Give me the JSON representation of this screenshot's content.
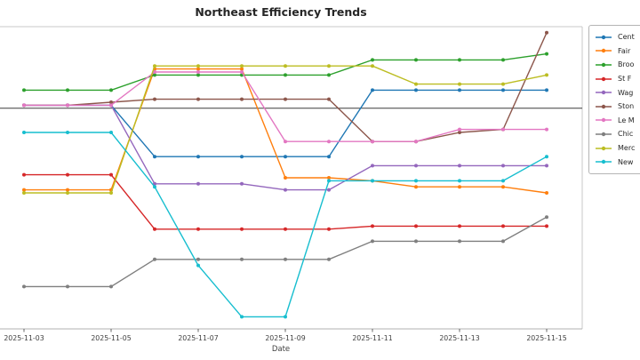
{
  "chart_data": {
    "type": "line",
    "title": "Northeast Efficiency Trends",
    "xlabel": "Date",
    "ylabel": "",
    "x": [
      "2025-11-03",
      "2025-11-04",
      "2025-11-05",
      "2025-11-06",
      "2025-11-07",
      "2025-11-08",
      "2025-11-09",
      "2025-11-10",
      "2025-11-11",
      "2025-11-12",
      "2025-11-13",
      "2025-11-14",
      "2025-11-15"
    ],
    "x_ticks": [
      "2025-11-03",
      "2025-11-05",
      "2025-11-07",
      "2025-11-09",
      "2025-11-11",
      "2025-11-13",
      "2025-11-15"
    ],
    "ylim": [
      0,
      100
    ],
    "grid": false,
    "legend_position": "upper-right-outside-clipped",
    "reference_line_y": 73,
    "series": [
      {
        "name": "Cent",
        "color": "#1f77b4",
        "values": [
          74,
          74,
          74,
          57,
          57,
          57,
          57,
          57,
          79,
          79,
          79,
          79,
          79
        ]
      },
      {
        "name": "Fair",
        "color": "#ff7f0e",
        "values": [
          46,
          46,
          46,
          86,
          86,
          86,
          50,
          50,
          49,
          47,
          47,
          47,
          45
        ]
      },
      {
        "name": "Broo",
        "color": "#2ca02c",
        "values": [
          79,
          79,
          79,
          84,
          84,
          84,
          84,
          84,
          89,
          89,
          89,
          89,
          91
        ]
      },
      {
        "name": "St F",
        "color": "#d62728",
        "values": [
          51,
          51,
          51,
          33,
          33,
          33,
          33,
          33,
          34,
          34,
          34,
          34,
          34
        ]
      },
      {
        "name": "Wag",
        "color": "#9467bd",
        "values": [
          74,
          74,
          74,
          48,
          48,
          48,
          46,
          46,
          54,
          54,
          54,
          54,
          54
        ]
      },
      {
        "name": "Ston",
        "color": "#8c564b",
        "values": [
          74,
          74,
          75,
          76,
          76,
          76,
          76,
          76,
          62,
          62,
          65,
          66,
          98
        ]
      },
      {
        "name": "Le M",
        "color": "#e377c2",
        "values": [
          74,
          74,
          74,
          85,
          85,
          85,
          62,
          62,
          62,
          62,
          66,
          66,
          66
        ]
      },
      {
        "name": "Chic",
        "color": "#7f7f7f",
        "values": [
          14,
          14,
          14,
          23,
          23,
          23,
          23,
          23,
          29,
          29,
          29,
          29,
          37
        ]
      },
      {
        "name": "Merc",
        "color": "#bcbd22",
        "values": [
          45,
          45,
          45,
          87,
          87,
          87,
          87,
          87,
          87,
          81,
          81,
          81,
          84
        ]
      },
      {
        "name": "New",
        "color": "#17becf",
        "values": [
          65,
          65,
          65,
          47,
          21,
          4,
          4,
          49,
          49,
          49,
          49,
          49,
          57
        ]
      }
    ]
  }
}
